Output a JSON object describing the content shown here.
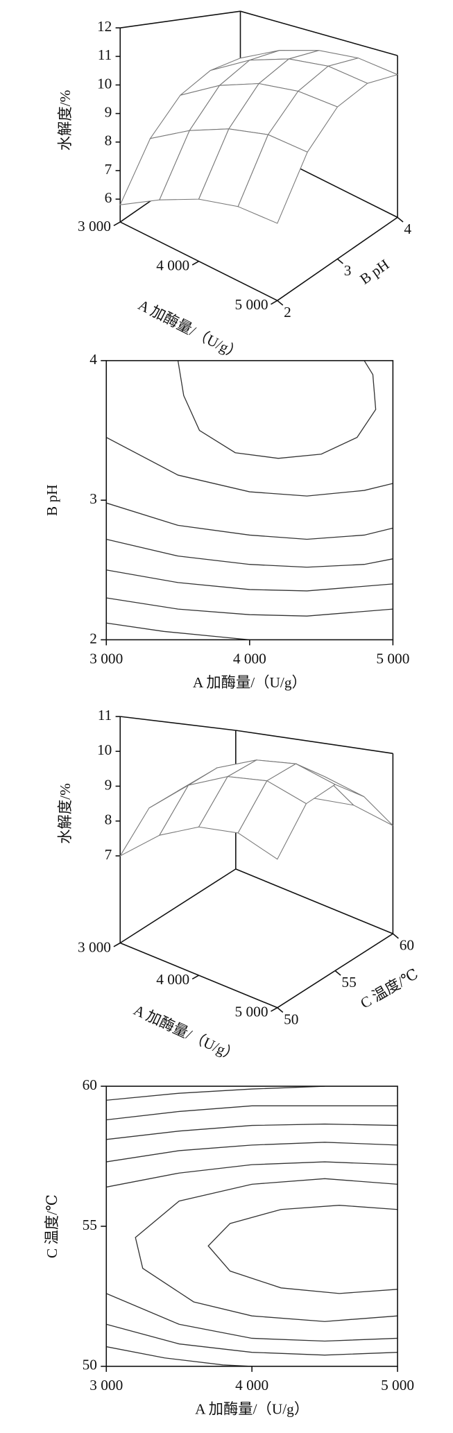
{
  "chart_data": [
    {
      "type": "surface",
      "x_label": "A 加酶量/（U/g）",
      "y_label": "B pH",
      "z_label": "水解度/%",
      "x": [
        3000,
        3500,
        4000,
        4500,
        5000
      ],
      "y": [
        2,
        2.5,
        3,
        3.5,
        4
      ],
      "z": [
        [
          5.8,
          6.6,
          7.2,
          7.5,
          7.5
        ],
        [
          7.6,
          8.5,
          9.1,
          9.4,
          9.3
        ],
        [
          8.8,
          9.8,
          10.4,
          10.6,
          10.5
        ],
        [
          9.4,
          10.5,
          11.1,
          11.3,
          11.1
        ],
        [
          9.5,
          10.6,
          11.2,
          11.4,
          11.2
        ]
      ],
      "xlim": [
        3000,
        5000
      ],
      "ylim": [
        2,
        4
      ],
      "zlim": [
        5.2,
        12
      ],
      "xticks": [
        {
          "value": 3000,
          "label": "3 000"
        },
        {
          "value": 4000,
          "label": "4 000"
        },
        {
          "value": 5000,
          "label": "5 000"
        }
      ],
      "yticks": [
        2,
        3,
        4
      ],
      "zticks": [
        6,
        7,
        8,
        9,
        10,
        11,
        12
      ]
    },
    {
      "type": "contour",
      "x_label": "A 加酶量/（U/g）",
      "y_label": "B pH",
      "xlim": [
        3000,
        5000
      ],
      "ylim": [
        2,
        4
      ],
      "xticks": [
        {
          "value": 3000,
          "label": "3 000"
        },
        {
          "value": 4000,
          "label": "4 000"
        },
        {
          "value": 5000,
          "label": "5 000"
        }
      ],
      "yticks": [
        2,
        3,
        4
      ],
      "contours": [
        {
          "x": [
            3500,
            3540,
            3650,
            3900,
            4200,
            4500,
            4750,
            4880,
            4860,
            4800
          ],
          "y": [
            4.0,
            3.75,
            3.5,
            3.34,
            3.3,
            3.33,
            3.45,
            3.65,
            3.9,
            4.0
          ]
        },
        {
          "x": [
            3000,
            3500,
            4000,
            4400,
            4800,
            5000
          ],
          "y": [
            3.45,
            3.18,
            3.06,
            3.03,
            3.07,
            3.12
          ]
        },
        {
          "x": [
            3000,
            3500,
            4000,
            4400,
            4800,
            5000
          ],
          "y": [
            2.98,
            2.82,
            2.75,
            2.72,
            2.75,
            2.8
          ]
        },
        {
          "x": [
            3000,
            3500,
            4000,
            4400,
            4800,
            5000
          ],
          "y": [
            2.72,
            2.6,
            2.54,
            2.52,
            2.54,
            2.58
          ]
        },
        {
          "x": [
            3000,
            3500,
            4000,
            4400,
            5000
          ],
          "y": [
            2.5,
            2.41,
            2.36,
            2.35,
            2.4
          ]
        },
        {
          "x": [
            3000,
            3500,
            4000,
            4400,
            5000
          ],
          "y": [
            2.3,
            2.22,
            2.18,
            2.17,
            2.22
          ]
        },
        {
          "x": [
            3000,
            3400,
            3800,
            4000
          ],
          "y": [
            2.12,
            2.06,
            2.02,
            2.0
          ]
        }
      ]
    },
    {
      "type": "surface",
      "x_label": "A 加酶量/（U/g）",
      "y_label": "C 温度/℃",
      "z_label": "水解度/%",
      "x": [
        3000,
        3500,
        4000,
        4500,
        5000
      ],
      "y": [
        50,
        52.5,
        55,
        57.5,
        60
      ],
      "z": [
        [
          7.0,
          7.9,
          8.4,
          8.5,
          8.1
        ],
        [
          8.2,
          9.2,
          9.7,
          9.8,
          9.4
        ],
        [
          8.6,
          9.7,
          10.2,
          10.3,
          9.9
        ],
        [
          8.2,
          9.3,
          9.8,
          9.9,
          9.5
        ],
        [
          7.2,
          8.2,
          8.7,
          8.8,
          8.4
        ]
      ],
      "xlim": [
        3000,
        5000
      ],
      "ylim": [
        50,
        60
      ],
      "zlim": [
        4.5,
        11
      ],
      "xticks": [
        {
          "value": 3000,
          "label": "3 000"
        },
        {
          "value": 4000,
          "label": "4 000"
        },
        {
          "value": 5000,
          "label": "5 000"
        }
      ],
      "yticks": [
        50,
        55,
        60
      ],
      "zticks": [
        7,
        8,
        9,
        10,
        11
      ]
    },
    {
      "type": "contour",
      "x_label": "A 加酶量/（U/g）",
      "y_label": "C 温度/℃",
      "xlim": [
        3000,
        5000
      ],
      "ylim": [
        50,
        60
      ],
      "xticks": [
        {
          "value": 3000,
          "label": "3 000"
        },
        {
          "value": 4000,
          "label": "4 000"
        },
        {
          "value": 5000,
          "label": "5 000"
        }
      ],
      "yticks": [
        50,
        55,
        60
      ],
      "contours": [
        {
          "x": [
            5000,
            4600,
            4200,
            3850,
            3700,
            3850,
            4200,
            4600,
            5000
          ],
          "y": [
            55.6,
            55.75,
            55.6,
            55.1,
            54.3,
            53.4,
            52.8,
            52.6,
            52.75
          ]
        },
        {
          "x": [
            5000,
            4500,
            4000,
            3500,
            3200,
            3250,
            3600,
            4000,
            4500,
            5000
          ],
          "y": [
            56.5,
            56.7,
            56.5,
            55.9,
            54.6,
            53.5,
            52.3,
            51.8,
            51.6,
            51.8
          ]
        },
        {
          "x": [
            3000,
            3500,
            4000,
            4500,
            5000
          ],
          "y": [
            56.4,
            56.9,
            57.2,
            57.3,
            57.2
          ]
        },
        {
          "x": [
            3000,
            3500,
            4000,
            4500,
            5000
          ],
          "y": [
            57.3,
            57.7,
            57.9,
            58.0,
            57.9
          ]
        },
        {
          "x": [
            3000,
            3500,
            4000,
            4500,
            5000
          ],
          "y": [
            58.1,
            58.4,
            58.6,
            58.65,
            58.6
          ]
        },
        {
          "x": [
            3000,
            3500,
            4000,
            5000
          ],
          "y": [
            58.8,
            59.1,
            59.3,
            59.3
          ]
        },
        {
          "x": [
            3000,
            3500,
            4000,
            4500
          ],
          "y": [
            59.5,
            59.75,
            59.9,
            60.0
          ]
        },
        {
          "x": [
            3000,
            3500,
            4000,
            4500,
            5000
          ],
          "y": [
            52.6,
            51.5,
            51.0,
            50.9,
            51.0
          ]
        },
        {
          "x": [
            3000,
            3500,
            4000,
            4500,
            5000
          ],
          "y": [
            51.5,
            50.8,
            50.5,
            50.4,
            50.5
          ]
        },
        {
          "x": [
            3000,
            3400,
            3800,
            4000
          ],
          "y": [
            50.7,
            50.3,
            50.05,
            50.0
          ]
        }
      ]
    }
  ]
}
